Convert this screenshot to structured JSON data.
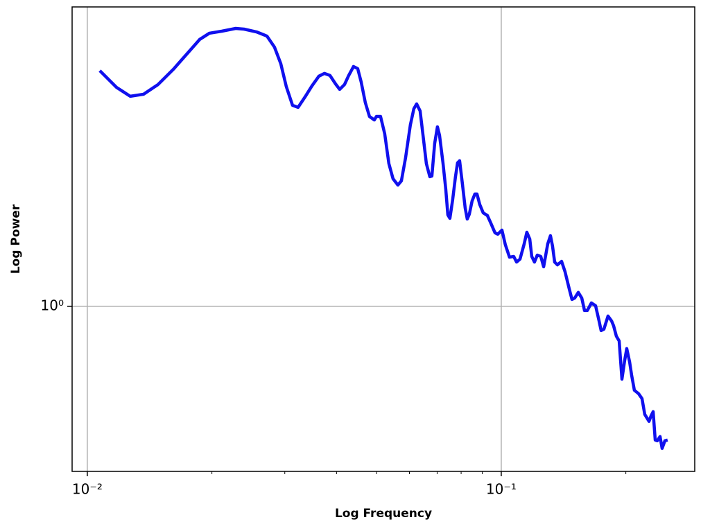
{
  "chart_data": {
    "type": "line",
    "x_label": "Log Frequency",
    "y_label": "Log Power",
    "xscale": "log",
    "yscale": "log",
    "grid": true,
    "xlim": [
      0.00919,
      0.2934
    ],
    "ylim": [
      0.4594,
      4.1
    ],
    "xticks": [
      {
        "value": 0.01,
        "label": "10⁻²"
      },
      {
        "value": 0.1,
        "label": "10⁻¹"
      }
    ],
    "xminor_ticks": [
      0.02,
      0.03,
      0.04,
      0.05,
      0.06,
      0.07,
      0.08,
      0.09,
      0.2
    ],
    "yticks": [
      {
        "value": 1,
        "label": "10⁰"
      }
    ],
    "x": [
      0.01072,
      0.01176,
      0.0127,
      0.01367,
      0.01482,
      0.01614,
      0.01757,
      0.01868,
      0.01972,
      0.02113,
      0.02283,
      0.02391,
      0.02563,
      0.02716,
      0.02833,
      0.02934,
      0.03025,
      0.03132,
      0.0323,
      0.03357,
      0.03489,
      0.03626,
      0.0374,
      0.03857,
      0.03978,
      0.04071,
      0.04182,
      0.0428,
      0.04397,
      0.045,
      0.04587,
      0.04695,
      0.04805,
      0.04936,
      0.04994,
      0.0511,
      0.0523,
      0.05352,
      0.05478,
      0.05628,
      0.05738,
      0.05872,
      0.06033,
      0.0615,
      0.06246,
      0.06368,
      0.06492,
      0.06593,
      0.06722,
      0.06799,
      0.06905,
      0.07012,
      0.07094,
      0.07232,
      0.07345,
      0.0743,
      0.07516,
      0.07633,
      0.07752,
      0.07842,
      0.07933,
      0.08056,
      0.08182,
      0.08277,
      0.08373,
      0.08503,
      0.08636,
      0.08737,
      0.08873,
      0.09045,
      0.09259,
      0.09438,
      0.09659,
      0.09808,
      0.1004,
      0.1023,
      0.1047,
      0.1072,
      0.1089,
      0.111,
      0.1136,
      0.1153,
      0.1172,
      0.1185,
      0.1203,
      0.1222,
      0.1246,
      0.1266,
      0.1295,
      0.1315,
      0.133,
      0.1346,
      0.1367,
      0.1399,
      0.1426,
      0.146,
      0.1482,
      0.1505,
      0.1535,
      0.1565,
      0.1589,
      0.1614,
      0.1651,
      0.169,
      0.1723,
      0.1743,
      0.177,
      0.1811,
      0.1847,
      0.1868,
      0.1897,
      0.1927,
      0.1957,
      0.1987,
      0.201,
      0.2042,
      0.2065,
      0.2097,
      0.2147,
      0.2188,
      0.2222,
      0.2275,
      0.2301,
      0.2328,
      0.2355,
      0.2382,
      0.2419,
      0.2447,
      0.2485,
      0.2523
    ],
    "series": [
      {
        "color": "#1010ee",
        "values": [
          3.036,
          2.807,
          2.691,
          2.717,
          2.844,
          3.056,
          3.316,
          3.517,
          3.622,
          3.657,
          3.705,
          3.693,
          3.645,
          3.574,
          3.392,
          3.137,
          2.817,
          2.579,
          2.554,
          2.682,
          2.826,
          2.958,
          2.997,
          2.968,
          2.853,
          2.78,
          2.844,
          2.968,
          3.096,
          3.066,
          2.881,
          2.612,
          2.447,
          2.407,
          2.447,
          2.447,
          2.255,
          1.96,
          1.824,
          1.771,
          1.806,
          2.012,
          2.353,
          2.537,
          2.596,
          2.512,
          2.19,
          1.96,
          1.842,
          1.848,
          2.154,
          2.33,
          2.24,
          1.966,
          1.737,
          1.539,
          1.514,
          1.654,
          1.842,
          1.966,
          1.986,
          1.783,
          1.59,
          1.509,
          1.544,
          1.643,
          1.698,
          1.698,
          1.616,
          1.554,
          1.534,
          1.48,
          1.414,
          1.405,
          1.432,
          1.337,
          1.261,
          1.265,
          1.232,
          1.249,
          1.342,
          1.418,
          1.373,
          1.265,
          1.232,
          1.273,
          1.265,
          1.205,
          1.342,
          1.395,
          1.329,
          1.232,
          1.216,
          1.236,
          1.177,
          1.085,
          1.033,
          1.04,
          1.068,
          1.04,
          0.9806,
          0.9806,
          1.016,
          1.003,
          0.9337,
          0.892,
          0.8978,
          0.9553,
          0.9337,
          0.9127,
          0.869,
          0.8494,
          0.7095,
          0.775,
          0.8194,
          0.7699,
          0.7235,
          0.6734,
          0.6625,
          0.6474,
          0.6008,
          0.5815,
          0.5969,
          0.6087,
          0.5324,
          0.5307,
          0.5413,
          0.512,
          0.5307,
          0.5324
        ]
      }
    ]
  }
}
